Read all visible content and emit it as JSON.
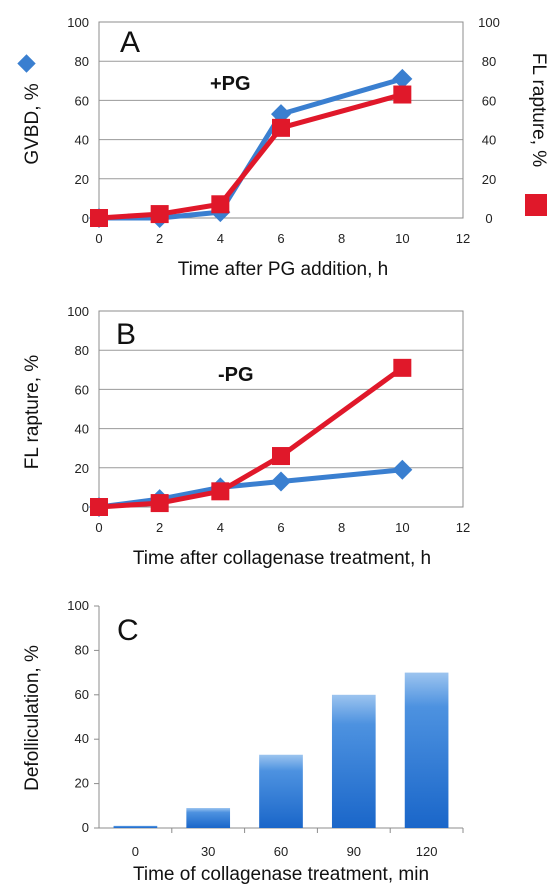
{
  "chart_data": [
    {
      "type": "line",
      "panel": "A",
      "annotation": "+PG",
      "xlabel": "Time after PG addition, h",
      "ylabel": "GVBD, %",
      "y2label": "FL rapture, %",
      "xlim": [
        0,
        12
      ],
      "ylim": [
        0,
        100
      ],
      "y2lim": [
        0,
        100
      ],
      "xticks": [
        "0",
        "2",
        "4",
        "6",
        "8",
        "10",
        "12"
      ],
      "yticks": [
        "0",
        "20",
        "40",
        "60",
        "80",
        "100"
      ],
      "y2ticks": [
        "0",
        "20",
        "40",
        "60",
        "80",
        "100"
      ],
      "grid": true,
      "legend": "GVBD marker left of left axis, FL rapture marker right of right axis",
      "series": [
        {
          "marker": "diamond",
          "color": "#3a7fd0",
          "x": [
            0,
            2,
            4,
            6,
            10
          ],
          "y": [
            0,
            0,
            3,
            53,
            71
          ]
        },
        {
          "marker": "square",
          "color": "#e0182a",
          "x": [
            0,
            2,
            4,
            6,
            10
          ],
          "y": [
            0,
            2,
            7,
            46,
            63
          ]
        }
      ]
    },
    {
      "type": "line",
      "panel": "B",
      "annotation": "-PG",
      "xlabel": "Time after collagenase treatment, h",
      "ylabel": "FL rapture, %",
      "xlim": [
        0,
        12
      ],
      "ylim": [
        0,
        100
      ],
      "xticks": [
        "0",
        "2",
        "4",
        "6",
        "8",
        "10",
        "12"
      ],
      "yticks": [
        "0",
        "20",
        "40",
        "60",
        "80",
        "100"
      ],
      "grid": true,
      "series": [
        {
          "marker": "diamond",
          "color": "#3a7fd0",
          "x": [
            0,
            2,
            4,
            6,
            10
          ],
          "y": [
            0,
            4,
            10,
            13,
            19
          ]
        },
        {
          "marker": "square",
          "color": "#e0182a",
          "x": [
            0,
            2,
            4,
            6,
            10
          ],
          "y": [
            0,
            2,
            8,
            26,
            71
          ]
        }
      ]
    },
    {
      "type": "bar",
      "panel": "C",
      "xlabel": "Time of collagenase treatment, min",
      "ylabel": "Defolliculation, %",
      "ylim": [
        0,
        100
      ],
      "yticks": [
        "0",
        "20",
        "40",
        "60",
        "80",
        "100"
      ],
      "categories": [
        "0",
        "30",
        "60",
        "90",
        "120"
      ],
      "values": [
        1,
        9,
        33,
        60,
        70
      ],
      "color": "#1e6fd4",
      "grid": false
    }
  ]
}
